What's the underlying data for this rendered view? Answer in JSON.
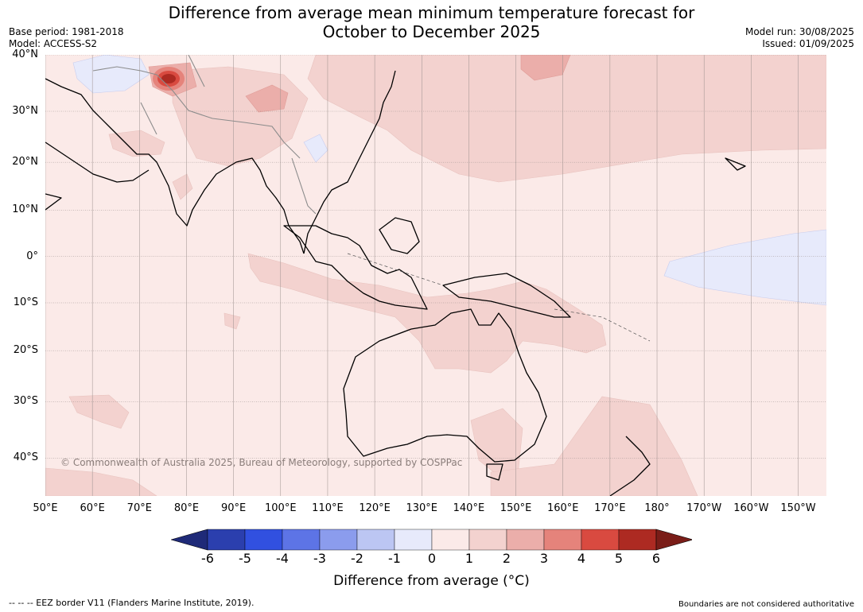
{
  "title_line1": "Difference from average mean minimum temperature forecast for",
  "title_line2": "October to December 2025",
  "base_period": "Base period: 1981-2018",
  "model": "Model: ACCESS-S2",
  "model_run": "Model run: 30/08/2025",
  "issued": "Issued: 01/09/2025",
  "copyright": "© Commonwealth of Australia 2025, Bureau of Meteorology, supported by COSPPac",
  "eez_note": "--  --  -- EEZ border V11 (Flanders Marine Institute, 2019).",
  "boundaries_note": "Boundaries are not considered authoritative",
  "colorbar": {
    "label": "Difference from average (°C)",
    "ticks": [
      "-6",
      "-5",
      "-4",
      "-3",
      "-2",
      "-1",
      "0",
      "1",
      "2",
      "3",
      "4",
      "5",
      "6"
    ],
    "bins": [
      {
        "range": [
          -6,
          -5
        ],
        "color": "#2b3fae"
      },
      {
        "range": [
          -5,
          -4
        ],
        "color": "#3150e0"
      },
      {
        "range": [
          -4,
          -3
        ],
        "color": "#5d74e6"
      },
      {
        "range": [
          -3,
          -2
        ],
        "color": "#8b9ced"
      },
      {
        "range": [
          -2,
          -1
        ],
        "color": "#bcc6f3"
      },
      {
        "range": [
          -1,
          0
        ],
        "color": "#e7eafb"
      },
      {
        "range": [
          0,
          1
        ],
        "color": "#fbeae8"
      },
      {
        "range": [
          1,
          2
        ],
        "color": "#f3d2cf"
      },
      {
        "range": [
          2,
          3
        ],
        "color": "#ebaeaa"
      },
      {
        "range": [
          3,
          4
        ],
        "color": "#e5837b"
      },
      {
        "range": [
          4,
          5
        ],
        "color": "#d94a40"
      },
      {
        "range": [
          5,
          6
        ],
        "color": "#ad2a22"
      }
    ],
    "under_color": "#1f2a78",
    "over_color": "#7a1d18"
  },
  "map": {
    "lat_range": [
      -46,
      40
    ],
    "lon_range": [
      50,
      216
    ],
    "lat_ticks": [
      {
        "value": 40,
        "label": "40°N"
      },
      {
        "value": 30,
        "label": "30°N"
      },
      {
        "value": 20,
        "label": "20°N"
      },
      {
        "value": 10,
        "label": "10°N"
      },
      {
        "value": 0,
        "label": "0°"
      },
      {
        "value": -10,
        "label": "10°S"
      },
      {
        "value": -20,
        "label": "20°S"
      },
      {
        "value": -30,
        "label": "30°S"
      },
      {
        "value": -40,
        "label": "40°S"
      }
    ],
    "lon_ticks": [
      {
        "value": 50,
        "label": "50°E"
      },
      {
        "value": 60,
        "label": "60°E"
      },
      {
        "value": 70,
        "label": "70°E"
      },
      {
        "value": 80,
        "label": "80°E"
      },
      {
        "value": 90,
        "label": "90°E"
      },
      {
        "value": 100,
        "label": "100°E"
      },
      {
        "value": 110,
        "label": "110°E"
      },
      {
        "value": 120,
        "label": "120°E"
      },
      {
        "value": 130,
        "label": "130°E"
      },
      {
        "value": 140,
        "label": "140°E"
      },
      {
        "value": 150,
        "label": "150°E"
      },
      {
        "value": 160,
        "label": "160°E"
      },
      {
        "value": 170,
        "label": "170°E"
      },
      {
        "value": 180,
        "label": "180°"
      },
      {
        "value": 190,
        "label": "170°W"
      },
      {
        "value": 200,
        "label": "160°W"
      },
      {
        "value": 210,
        "label": "150°W"
      }
    ]
  }
}
